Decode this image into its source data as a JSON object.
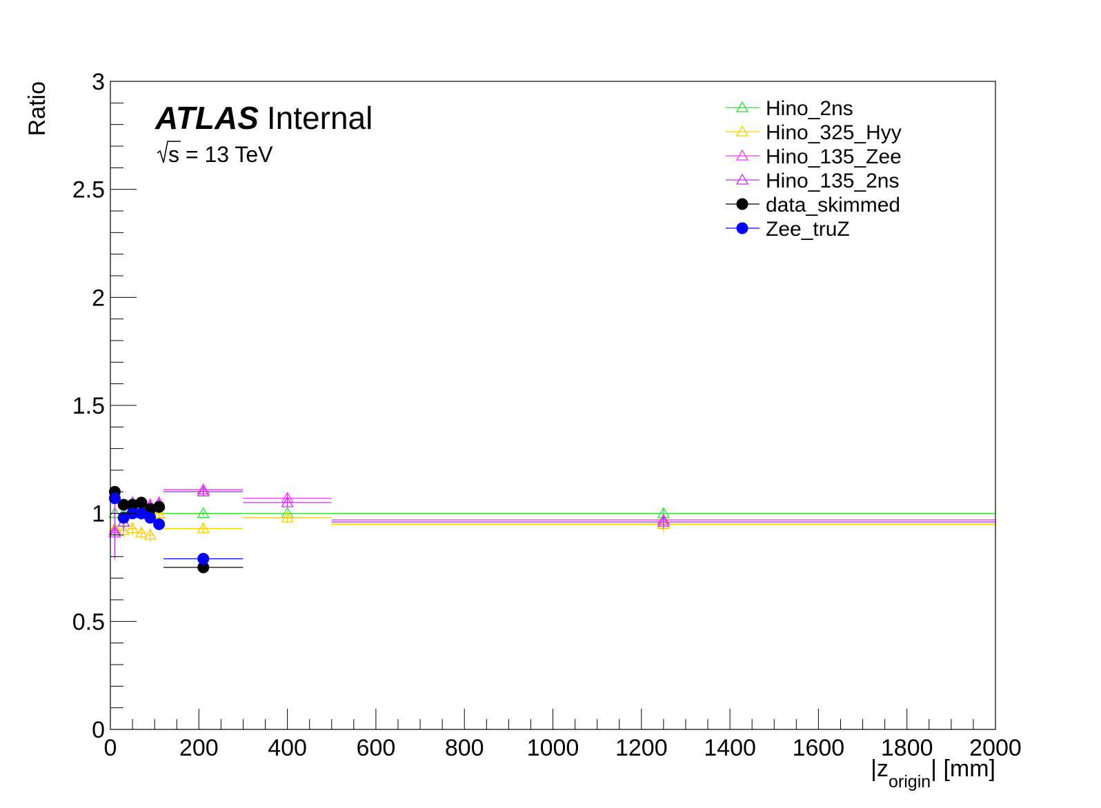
{
  "chart_data": {
    "type": "scatter",
    "title": "",
    "xlabel": "|z_origin| [mm]",
    "xlabel_main": "|z",
    "xlabel_sub": "origin",
    "xlabel_tail": "| [mm]",
    "ylabel": "Ratio",
    "xlim": [
      0,
      2000
    ],
    "ylim": [
      0,
      3
    ],
    "x_ticks": [
      "0",
      "200",
      "400",
      "600",
      "800",
      "1000",
      "1200",
      "1400",
      "1600",
      "1800",
      "2000"
    ],
    "y_ticks": [
      "0",
      "0.5",
      "1",
      "1.5",
      "2",
      "2.5",
      "3"
    ],
    "grid": false,
    "legend_position": "top-right",
    "annotations": {
      "experiment": "ATLAS",
      "status": "Internal",
      "energy_prefix": "s",
      "energy_text": " = 13 TeV"
    },
    "series": [
      {
        "name": "Hino_2ns",
        "color": "#33dd33",
        "marker": "open-triangle",
        "points": [
          {
            "x": 10,
            "y": 1.0,
            "xerr": 10,
            "yerr": 0.03
          },
          {
            "x": 30,
            "y": 1.0,
            "xerr": 10,
            "yerr": 0.02
          },
          {
            "x": 50,
            "y": 1.0,
            "xerr": 10,
            "yerr": 0.02
          },
          {
            "x": 70,
            "y": 1.0,
            "xerr": 10,
            "yerr": 0.02
          },
          {
            "x": 90,
            "y": 1.0,
            "xerr": 10,
            "yerr": 0.02
          },
          {
            "x": 110,
            "y": 1.0,
            "xerr": 10,
            "yerr": 0.02
          },
          {
            "x": 210,
            "y": 1.0,
            "xerr": 90,
            "yerr": 0.01
          },
          {
            "x": 400,
            "y": 1.0,
            "xerr": 100,
            "yerr": 0.01
          },
          {
            "x": 1250,
            "y": 1.0,
            "xerr": 750,
            "yerr": 0.02
          }
        ]
      },
      {
        "name": "Hino_325_Hyy",
        "color": "#ffcc00",
        "marker": "open-triangle",
        "points": [
          {
            "x": 10,
            "y": 0.93,
            "xerr": 10,
            "yerr": 0.04
          },
          {
            "x": 30,
            "y": 0.92,
            "xerr": 10,
            "yerr": 0.03
          },
          {
            "x": 50,
            "y": 0.93,
            "xerr": 10,
            "yerr": 0.03
          },
          {
            "x": 70,
            "y": 0.91,
            "xerr": 10,
            "yerr": 0.03
          },
          {
            "x": 90,
            "y": 0.9,
            "xerr": 10,
            "yerr": 0.03
          },
          {
            "x": 110,
            "y": 1.0,
            "xerr": 10,
            "yerr": 0.03
          },
          {
            "x": 210,
            "y": 0.93,
            "xerr": 90,
            "yerr": 0.02
          },
          {
            "x": 400,
            "y": 0.98,
            "xerr": 100,
            "yerr": 0.02
          },
          {
            "x": 1250,
            "y": 0.95,
            "xerr": 750,
            "yerr": 0.04
          }
        ]
      },
      {
        "name": "Hino_135_Zee",
        "color": "#ff33ff",
        "marker": "open-triangle",
        "points": [
          {
            "x": 10,
            "y": 0.92,
            "xerr": 10,
            "yerr": 0.13
          },
          {
            "x": 30,
            "y": 0.96,
            "xerr": 10,
            "yerr": 0.04
          },
          {
            "x": 50,
            "y": 1.05,
            "xerr": 10,
            "yerr": 0.03
          },
          {
            "x": 70,
            "y": 1.0,
            "xerr": 10,
            "yerr": 0.03
          },
          {
            "x": 90,
            "y": 1.04,
            "xerr": 10,
            "yerr": 0.03
          },
          {
            "x": 110,
            "y": 1.05,
            "xerr": 10,
            "yerr": 0.03
          },
          {
            "x": 210,
            "y": 1.11,
            "xerr": 90,
            "yerr": 0.02
          },
          {
            "x": 400,
            "y": 1.07,
            "xerr": 100,
            "yerr": 0.02
          },
          {
            "x": 1250,
            "y": 0.97,
            "xerr": 750,
            "yerr": 0.03
          }
        ]
      },
      {
        "name": "Hino_135_2ns",
        "color": "#bb33ee",
        "marker": "open-triangle",
        "points": [
          {
            "x": 10,
            "y": 0.91,
            "xerr": 10,
            "yerr": 0.12
          },
          {
            "x": 30,
            "y": 0.96,
            "xerr": 10,
            "yerr": 0.04
          },
          {
            "x": 50,
            "y": 1.04,
            "xerr": 10,
            "yerr": 0.03
          },
          {
            "x": 70,
            "y": 1.0,
            "xerr": 10,
            "yerr": 0.03
          },
          {
            "x": 90,
            "y": 1.03,
            "xerr": 10,
            "yerr": 0.03
          },
          {
            "x": 110,
            "y": 1.04,
            "xerr": 10,
            "yerr": 0.03
          },
          {
            "x": 210,
            "y": 1.1,
            "xerr": 90,
            "yerr": 0.02
          },
          {
            "x": 400,
            "y": 1.05,
            "xerr": 100,
            "yerr": 0.02
          },
          {
            "x": 1250,
            "y": 0.96,
            "xerr": 750,
            "yerr": 0.03
          }
        ]
      },
      {
        "name": "data_skimmed",
        "color": "#000000",
        "marker": "filled-circle",
        "points": [
          {
            "x": 10,
            "y": 1.1,
            "xerr": 10,
            "yerr": 0.02
          },
          {
            "x": 30,
            "y": 1.04,
            "xerr": 10,
            "yerr": 0.01
          },
          {
            "x": 50,
            "y": 1.04,
            "xerr": 10,
            "yerr": 0.01
          },
          {
            "x": 70,
            "y": 1.05,
            "xerr": 10,
            "yerr": 0.01
          },
          {
            "x": 90,
            "y": 1.02,
            "xerr": 10,
            "yerr": 0.01
          },
          {
            "x": 110,
            "y": 1.03,
            "xerr": 10,
            "yerr": 0.01
          },
          {
            "x": 210,
            "y": 0.75,
            "xerr": 90,
            "yerr": 0.02
          }
        ]
      },
      {
        "name": "Zee_truZ",
        "color": "#0000ff",
        "marker": "filled-circle",
        "points": [
          {
            "x": 10,
            "y": 1.07,
            "xerr": 10,
            "yerr": 0.02
          },
          {
            "x": 30,
            "y": 0.98,
            "xerr": 10,
            "yerr": 0.01
          },
          {
            "x": 50,
            "y": 1.0,
            "xerr": 10,
            "yerr": 0.01
          },
          {
            "x": 70,
            "y": 1.0,
            "xerr": 10,
            "yerr": 0.01
          },
          {
            "x": 90,
            "y": 0.98,
            "xerr": 10,
            "yerr": 0.01
          },
          {
            "x": 110,
            "y": 0.95,
            "xerr": 10,
            "yerr": 0.01
          },
          {
            "x": 210,
            "y": 0.79,
            "xerr": 90,
            "yerr": 0.02
          }
        ]
      }
    ]
  }
}
